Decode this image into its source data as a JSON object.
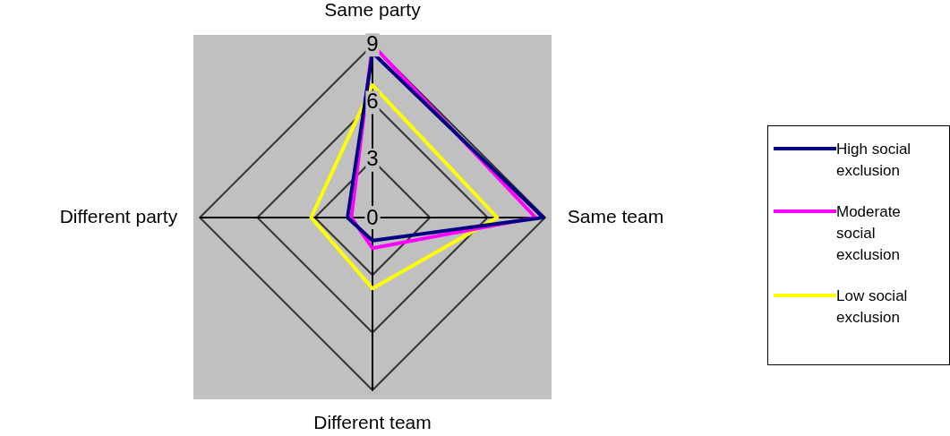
{
  "chart_data": {
    "type": "radar",
    "categories": [
      "Same party",
      "Same team",
      "Different team",
      "Different party"
    ],
    "series": [
      {
        "name": "High social exclusion",
        "color": "#000080",
        "values": [
          8.6,
          8.9,
          1.2,
          1.3
        ]
      },
      {
        "name": "Moderate social exclusion",
        "color": "#ff00ff",
        "values": [
          9.0,
          8.5,
          1.6,
          1.1
        ]
      },
      {
        "name": "Low social exclusion",
        "color": "#ffff00",
        "values": [
          6.9,
          6.5,
          3.7,
          3.2
        ]
      }
    ],
    "ylim": [
      0,
      9
    ],
    "yticks": [
      0,
      3,
      6,
      9
    ],
    "grid": true,
    "legend": "right"
  }
}
